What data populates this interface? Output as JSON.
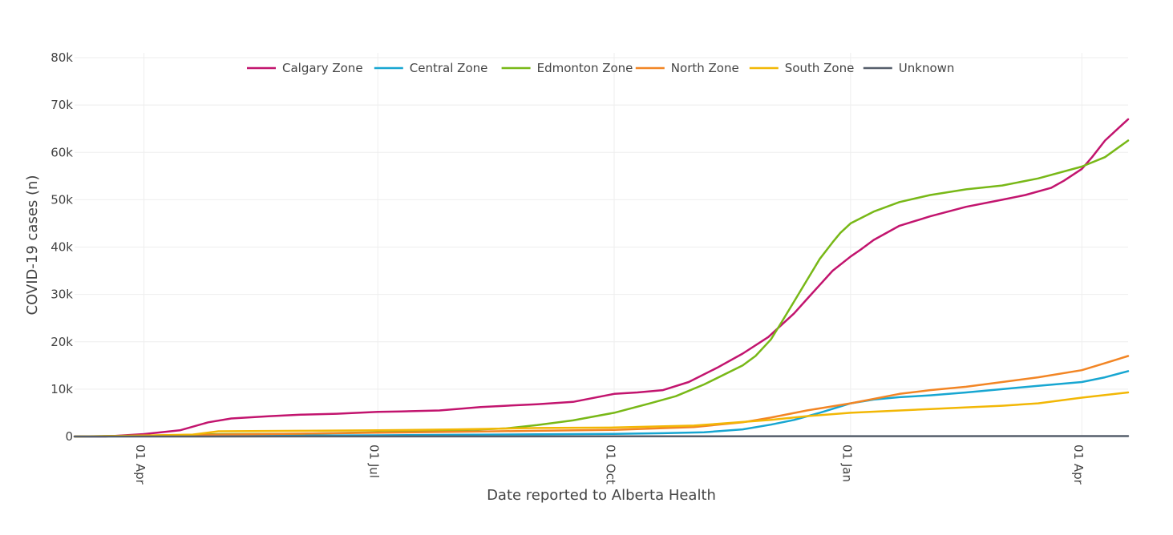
{
  "chart_data": {
    "type": "line",
    "title": "",
    "xlabel": "Date reported to Alberta Health",
    "ylabel": "COVID-19 cases (n)",
    "x_range": [
      "2020-03-05",
      "2021-04-19"
    ],
    "ylim": [
      0,
      80000
    ],
    "y_ticks": [
      0,
      10000,
      20000,
      30000,
      40000,
      50000,
      60000,
      70000,
      80000
    ],
    "y_tick_labels": [
      "0",
      "10k",
      "20k",
      "30k",
      "40k",
      "50k",
      "60k",
      "70k",
      "80k"
    ],
    "x_ticks": [
      "2020-04-01",
      "2020-07-01",
      "2020-10-01",
      "2021-01-01",
      "2021-04-01"
    ],
    "x_tick_labels": [
      "01 Apr",
      "01 Jul",
      "01 Oct",
      "01 Jan",
      "01 Apr"
    ],
    "grid": true,
    "legend_position": "top-center",
    "series": [
      {
        "name": "Calgary Zone",
        "color": "#c2146e",
        "points": [
          [
            "2020-03-05",
            0
          ],
          [
            "2020-03-17",
            0
          ],
          [
            "2020-04-01",
            500
          ],
          [
            "2020-04-15",
            1300
          ],
          [
            "2020-04-26",
            3000
          ],
          [
            "2020-05-05",
            3800
          ],
          [
            "2020-05-20",
            4300
          ],
          [
            "2020-06-01",
            4600
          ],
          [
            "2020-06-15",
            4800
          ],
          [
            "2020-07-01",
            5200
          ],
          [
            "2020-07-10",
            5300
          ],
          [
            "2020-07-25",
            5500
          ],
          [
            "2020-08-10",
            6200
          ],
          [
            "2020-08-20",
            6500
          ],
          [
            "2020-09-01",
            6800
          ],
          [
            "2020-09-15",
            7300
          ],
          [
            "2020-10-01",
            9000
          ],
          [
            "2020-10-10",
            9300
          ],
          [
            "2020-10-20",
            9800
          ],
          [
            "2020-10-30",
            11500
          ],
          [
            "2020-11-10",
            14500
          ],
          [
            "2020-11-20",
            17500
          ],
          [
            "2020-11-30",
            21000
          ],
          [
            "2020-12-05",
            23500
          ],
          [
            "2020-12-10",
            26000
          ],
          [
            "2020-12-15",
            29000
          ],
          [
            "2020-12-20",
            32000
          ],
          [
            "2020-12-25",
            35000
          ],
          [
            "2021-01-01",
            38000
          ],
          [
            "2021-01-05",
            39500
          ],
          [
            "2021-01-10",
            41500
          ],
          [
            "2021-01-20",
            44500
          ],
          [
            "2021-02-01",
            46500
          ],
          [
            "2021-02-15",
            48500
          ],
          [
            "2021-03-01",
            50000
          ],
          [
            "2021-03-10",
            51000
          ],
          [
            "2021-03-20",
            52500
          ],
          [
            "2021-03-25",
            54000
          ],
          [
            "2021-04-01",
            56500
          ],
          [
            "2021-04-05",
            59000
          ],
          [
            "2021-04-10",
            62500
          ],
          [
            "2021-04-15",
            65000
          ],
          [
            "2021-04-19",
            67000
          ]
        ]
      },
      {
        "name": "Central Zone",
        "color": "#17a6d1",
        "points": [
          [
            "2020-03-05",
            0
          ],
          [
            "2020-04-01",
            50
          ],
          [
            "2020-05-01",
            150
          ],
          [
            "2020-06-01",
            200
          ],
          [
            "2020-07-01",
            250
          ],
          [
            "2020-08-01",
            350
          ],
          [
            "2020-09-01",
            450
          ],
          [
            "2020-10-01",
            550
          ],
          [
            "2020-10-20",
            700
          ],
          [
            "2020-11-05",
            900
          ],
          [
            "2020-11-20",
            1500
          ],
          [
            "2020-12-01",
            2500
          ],
          [
            "2020-12-10",
            3500
          ],
          [
            "2020-12-20",
            5000
          ],
          [
            "2021-01-01",
            7000
          ],
          [
            "2021-01-10",
            7800
          ],
          [
            "2021-01-20",
            8300
          ],
          [
            "2021-02-01",
            8700
          ],
          [
            "2021-02-15",
            9300
          ],
          [
            "2021-03-01",
            10000
          ],
          [
            "2021-03-15",
            10700
          ],
          [
            "2021-04-01",
            11500
          ],
          [
            "2021-04-10",
            12500
          ],
          [
            "2021-04-19",
            13800
          ]
        ]
      },
      {
        "name": "Edmonton Zone",
        "color": "#78b817",
        "points": [
          [
            "2020-03-05",
            0
          ],
          [
            "2020-03-20",
            100
          ],
          [
            "2020-04-15",
            300
          ],
          [
            "2020-05-01",
            500
          ],
          [
            "2020-06-01",
            600
          ],
          [
            "2020-07-01",
            900
          ],
          [
            "2020-08-01",
            1300
          ],
          [
            "2020-08-20",
            1700
          ],
          [
            "2020-09-01",
            2400
          ],
          [
            "2020-09-15",
            3400
          ],
          [
            "2020-10-01",
            5000
          ],
          [
            "2020-10-15",
            7000
          ],
          [
            "2020-10-25",
            8500
          ],
          [
            "2020-11-05",
            11000
          ],
          [
            "2020-11-20",
            15000
          ],
          [
            "2020-11-25",
            17000
          ],
          [
            "2020-12-01",
            20500
          ],
          [
            "2020-12-05",
            24000
          ],
          [
            "2020-12-10",
            28500
          ],
          [
            "2020-12-15",
            33000
          ],
          [
            "2020-12-20",
            37500
          ],
          [
            "2020-12-25",
            41000
          ],
          [
            "2020-12-28",
            43000
          ],
          [
            "2021-01-01",
            45000
          ],
          [
            "2021-01-10",
            47500
          ],
          [
            "2021-01-20",
            49500
          ],
          [
            "2021-02-01",
            51000
          ],
          [
            "2021-02-15",
            52200
          ],
          [
            "2021-03-01",
            53000
          ],
          [
            "2021-03-15",
            54500
          ],
          [
            "2021-04-01",
            57000
          ],
          [
            "2021-04-10",
            59000
          ],
          [
            "2021-04-19",
            62500
          ]
        ]
      },
      {
        "name": "North Zone",
        "color": "#f28524",
        "points": [
          [
            "2020-03-05",
            0
          ],
          [
            "2020-04-01",
            100
          ],
          [
            "2020-05-01",
            400
          ],
          [
            "2020-06-01",
            600
          ],
          [
            "2020-07-01",
            800
          ],
          [
            "2020-08-01",
            1000
          ],
          [
            "2020-09-01",
            1200
          ],
          [
            "2020-10-01",
            1400
          ],
          [
            "2020-11-01",
            2000
          ],
          [
            "2020-11-20",
            3000
          ],
          [
            "2020-12-01",
            4000
          ],
          [
            "2020-12-15",
            5500
          ],
          [
            "2021-01-01",
            7000
          ],
          [
            "2021-01-20",
            9000
          ],
          [
            "2021-02-01",
            9800
          ],
          [
            "2021-02-15",
            10500
          ],
          [
            "2021-03-01",
            11500
          ],
          [
            "2021-03-15",
            12500
          ],
          [
            "2021-04-01",
            14000
          ],
          [
            "2021-04-10",
            15500
          ],
          [
            "2021-04-19",
            17000
          ]
        ]
      },
      {
        "name": "South Zone",
        "color": "#f2b705",
        "points": [
          [
            "2020-03-05",
            0
          ],
          [
            "2020-04-01",
            200
          ],
          [
            "2020-04-20",
            400
          ],
          [
            "2020-04-30",
            1100
          ],
          [
            "2020-06-01",
            1200
          ],
          [
            "2020-07-01",
            1300
          ],
          [
            "2020-08-01",
            1500
          ],
          [
            "2020-09-01",
            1800
          ],
          [
            "2020-10-01",
            1900
          ],
          [
            "2020-11-01",
            2300
          ],
          [
            "2020-12-01",
            3500
          ],
          [
            "2020-12-15",
            4300
          ],
          [
            "2021-01-01",
            5000
          ],
          [
            "2021-02-01",
            5800
          ],
          [
            "2021-03-01",
            6500
          ],
          [
            "2021-03-15",
            7000
          ],
          [
            "2021-04-01",
            8200
          ],
          [
            "2021-04-19",
            9300
          ]
        ]
      },
      {
        "name": "Unknown",
        "color": "#555e6b",
        "points": [
          [
            "2020-03-05",
            0
          ],
          [
            "2020-07-01",
            20
          ],
          [
            "2020-10-01",
            40
          ],
          [
            "2021-01-01",
            60
          ],
          [
            "2021-04-19",
            80
          ]
        ]
      }
    ]
  }
}
